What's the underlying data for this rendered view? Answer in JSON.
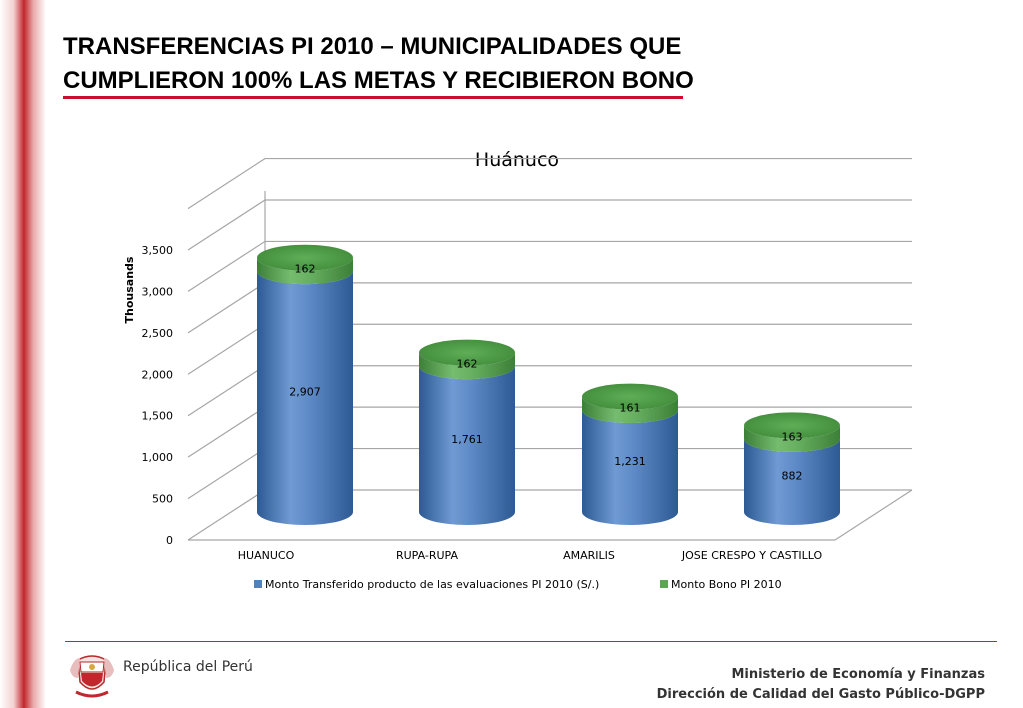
{
  "slide": {
    "title_line1": "TRANSFERENCIAS PI 2010 – MUNICIPALIDADES QUE",
    "title_line2": "CUMPLIERON 100% LAS METAS Y RECIBIERON BONO"
  },
  "chart_data": {
    "type": "bar",
    "stacked": true,
    "title": "Huánuco",
    "xlabel": "",
    "ylabel": "Thousands",
    "ylim": [
      0,
      3500
    ],
    "yticks": [
      "0",
      "500",
      "1,000",
      "1,500",
      "2,000",
      "2,500",
      "3,000",
      "3,500"
    ],
    "categories": [
      "HUANUCO",
      "RUPA-RUPA",
      "AMARILIS",
      "JOSE CRESPO Y CASTILLO"
    ],
    "series": [
      {
        "name": "Monto Transferido producto de las evaluaciones PI 2010 (S/.)",
        "values": [
          2907,
          1761,
          1231,
          882
        ],
        "labels": [
          "2,907",
          "1,761",
          "1,231",
          "882"
        ],
        "color": "#4f81bd"
      },
      {
        "name": "Monto Bono PI 2010",
        "values": [
          162,
          162,
          161,
          163
        ],
        "labels": [
          "162",
          "162",
          "161",
          "163"
        ],
        "color": "#5aa653"
      }
    ],
    "grid": true,
    "legend_position": "bottom"
  },
  "footer": {
    "country": "República del Perú",
    "ministry": "Ministerio de Economía y Finanzas",
    "directorate": "Dirección de Calidad del Gasto Público-DGPP"
  },
  "colors": {
    "accent_red": "#c8102e",
    "bar_blue": "#4f81bd",
    "bar_green": "#5aa653"
  }
}
